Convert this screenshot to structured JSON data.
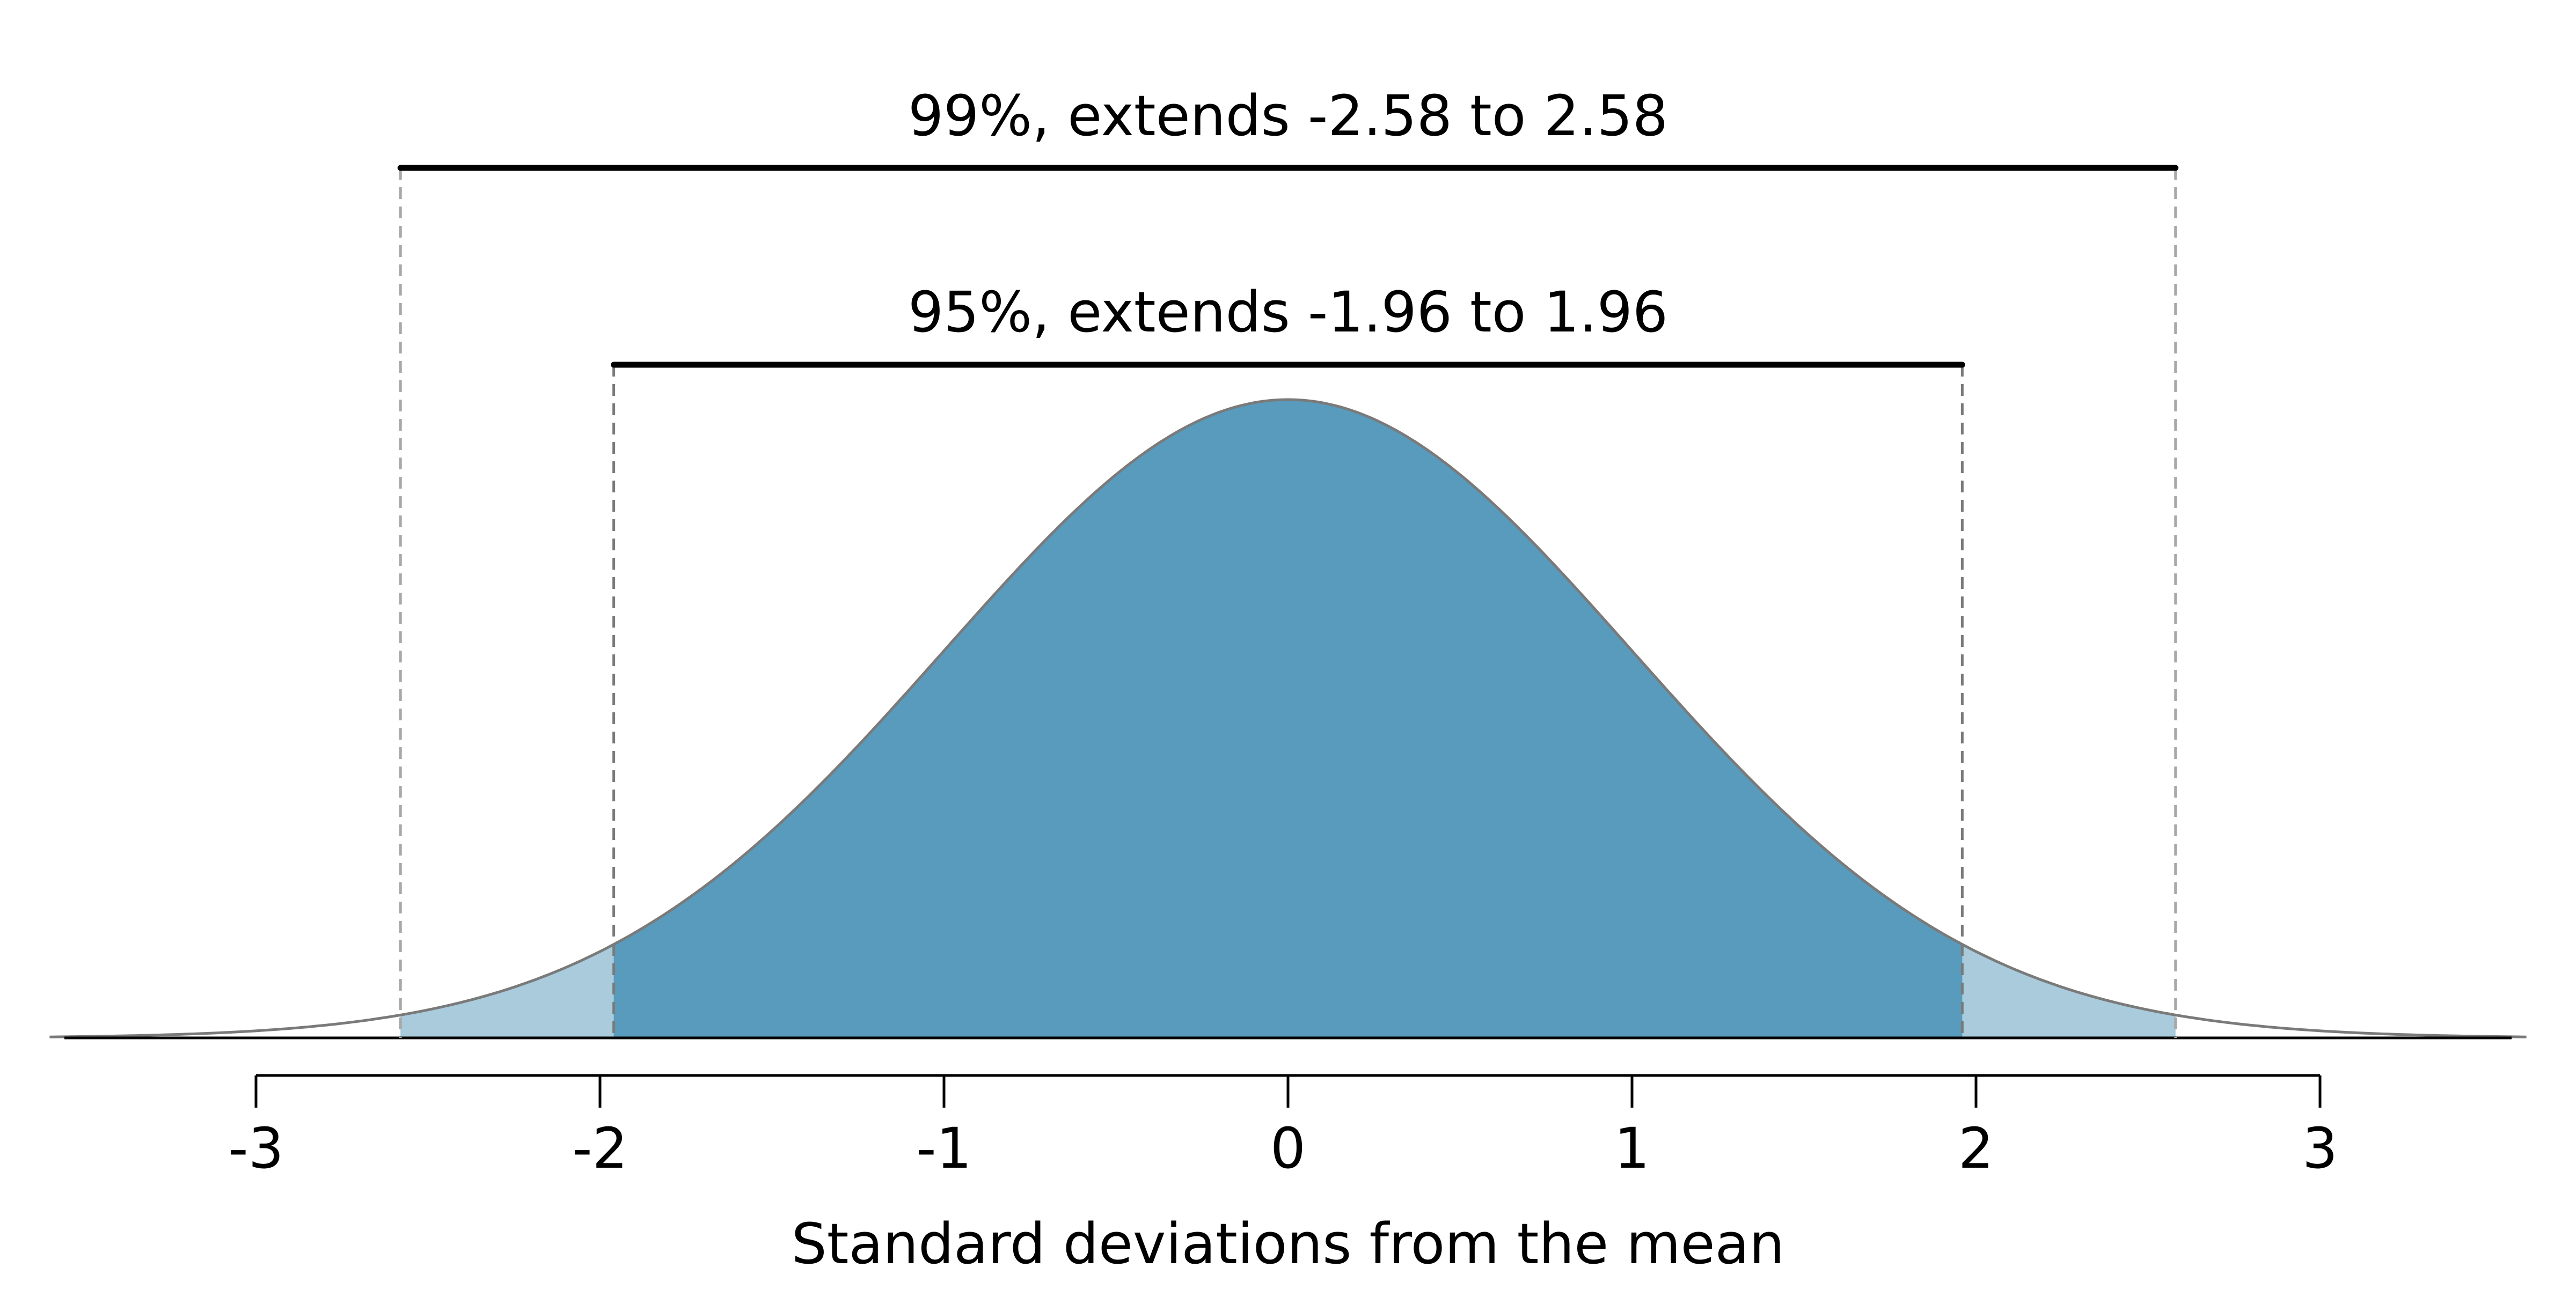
{
  "chart_data": {
    "type": "area",
    "distribution": "standard normal",
    "mean": 0,
    "sd": 1,
    "xlim": [
      -3.6,
      3.6
    ],
    "xticks": [
      -3,
      -2,
      -1,
      0,
      1,
      2,
      3
    ],
    "xlabel": "Standard deviations from the mean",
    "grid": false,
    "intervals": [
      {
        "label": "99%, extends -2.58 to 2.58",
        "low": -2.58,
        "high": 2.58,
        "color": "#a9cbdc"
      },
      {
        "label": "95%, extends -1.96 to 1.96",
        "low": -1.96,
        "high": 1.96,
        "color": "#589bbd"
      }
    ],
    "curve_color": "#7a7a7a",
    "guide_line_colors": [
      "#a8a8a8",
      "#7a7a7a"
    ]
  }
}
